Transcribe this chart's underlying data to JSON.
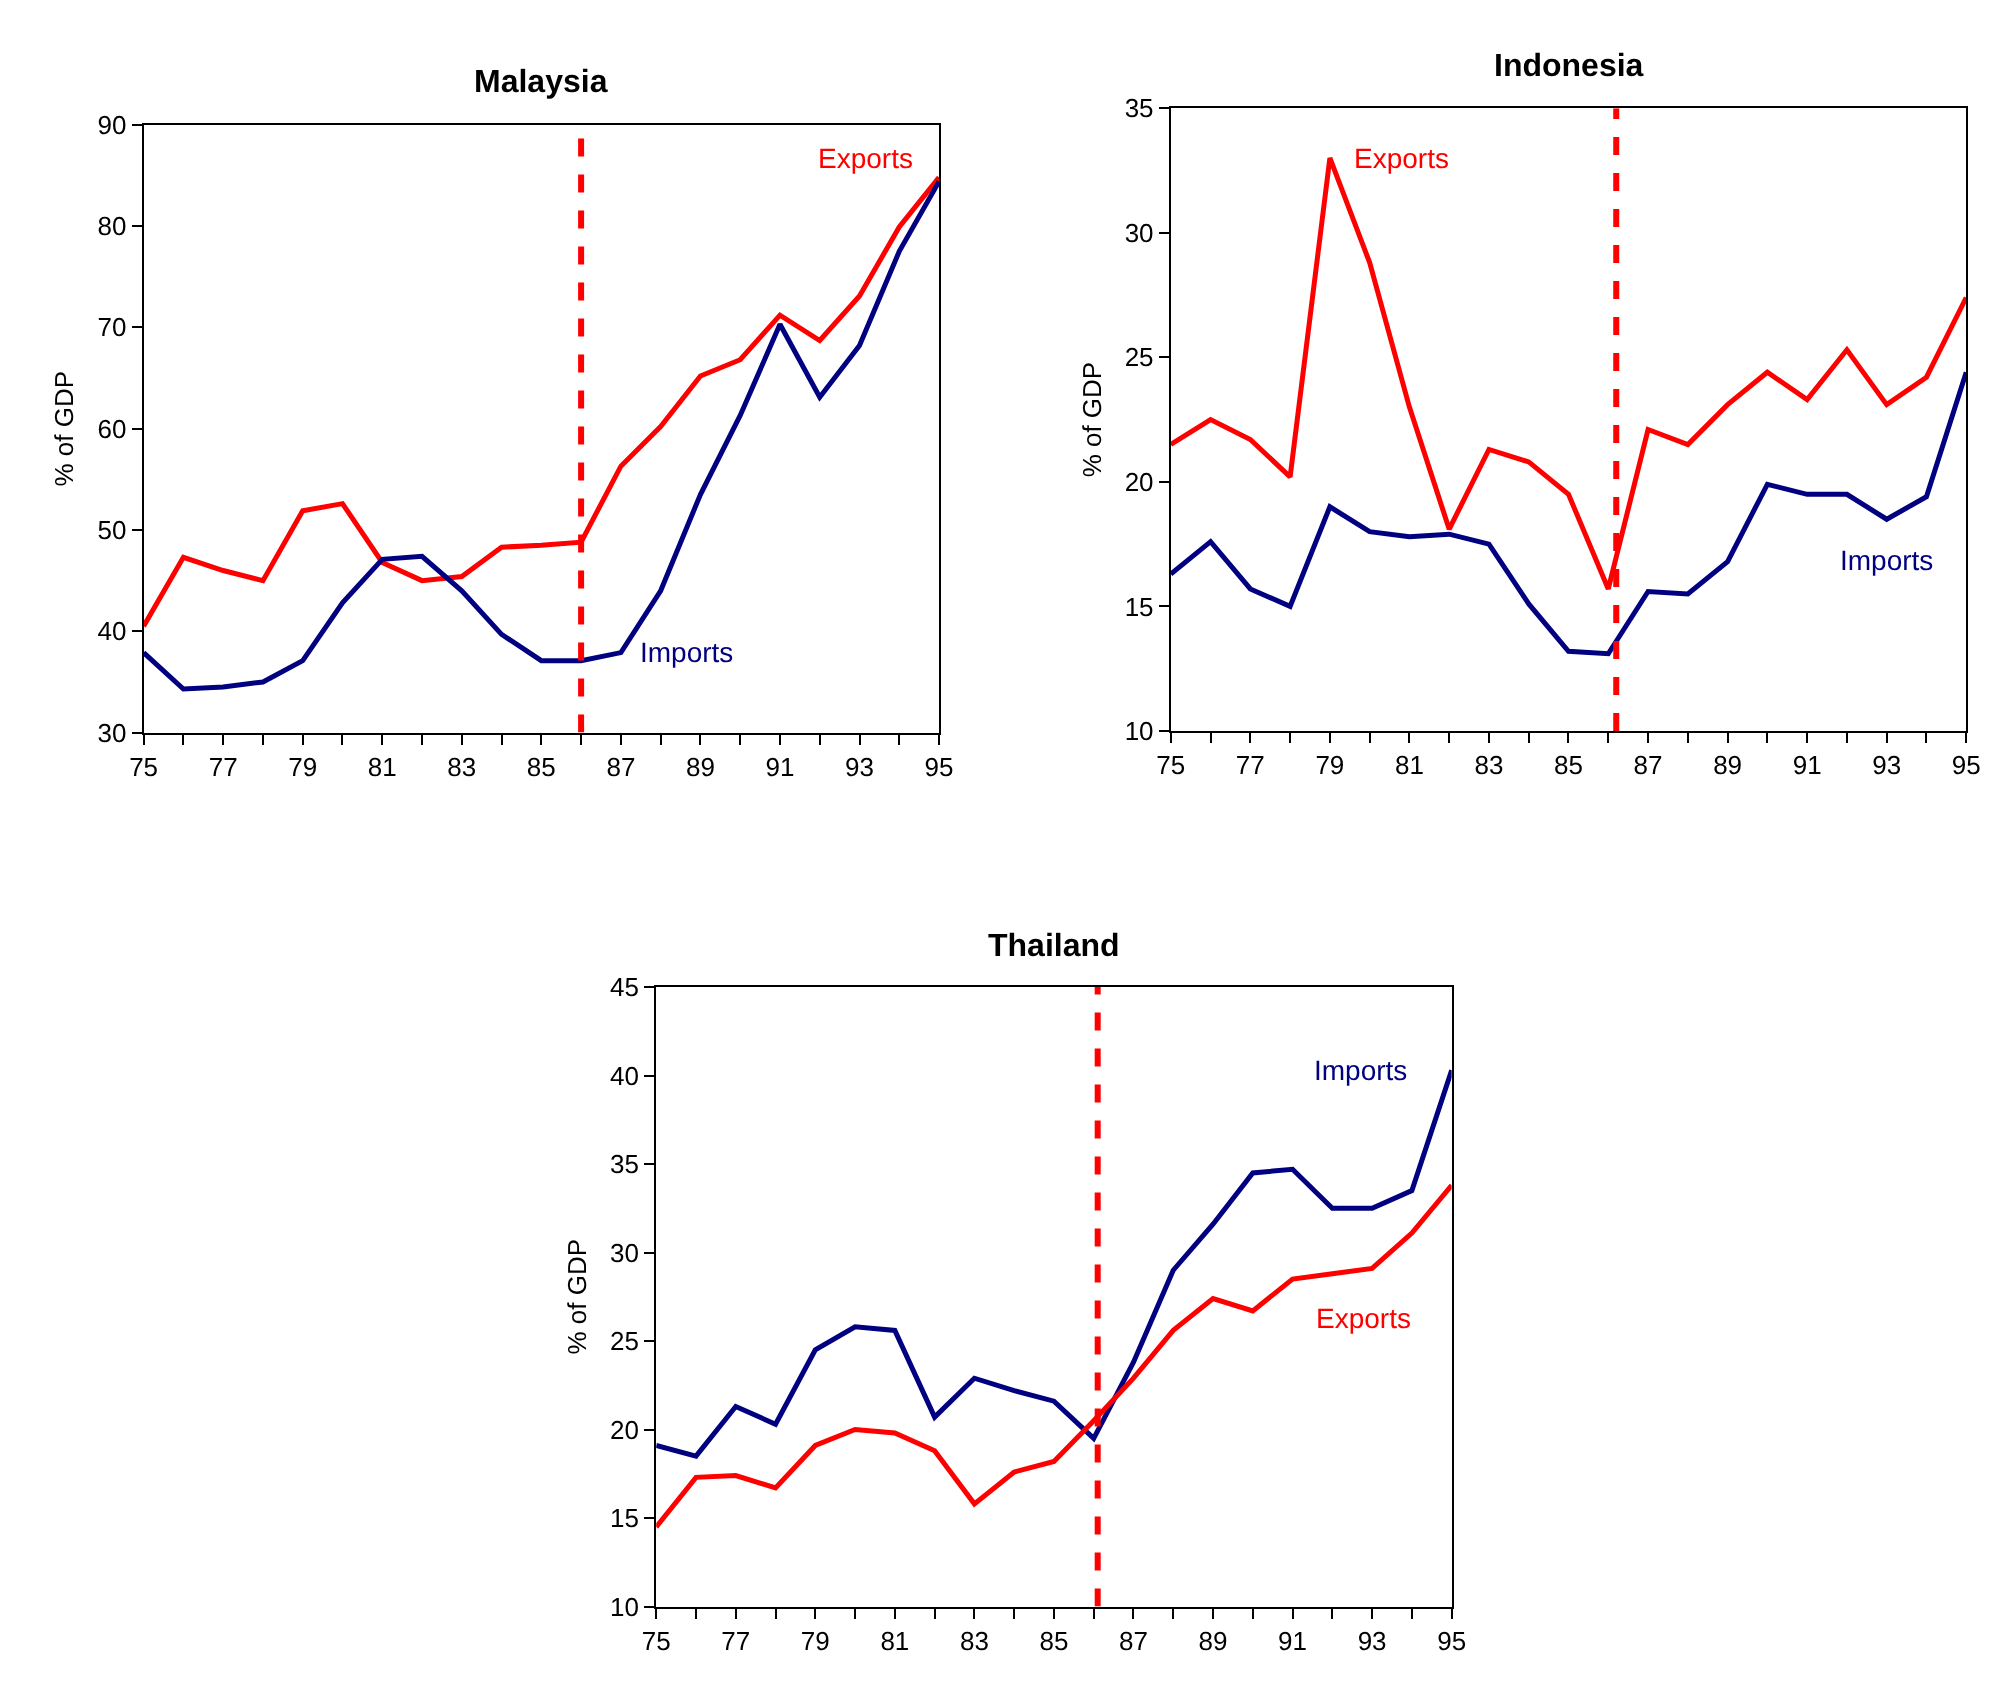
{
  "chart_data": [
    {
      "type": "line",
      "title": "Malaysia",
      "ylabel": "% of GDP",
      "x": [
        75,
        76,
        77,
        78,
        79,
        80,
        81,
        82,
        83,
        84,
        85,
        86,
        87,
        88,
        89,
        90,
        91,
        92,
        93,
        94,
        95
      ],
      "series": [
        {
          "name": "Exports",
          "color": "#ff0000",
          "values": [
            40.5,
            47.3,
            46,
            45,
            51.9,
            52.6,
            46.8,
            45,
            45.4,
            48.3,
            48.5,
            48.8,
            56.3,
            60.2,
            65.2,
            66.8,
            71.2,
            68.7,
            73.1,
            79.9,
            84.8
          ]
        },
        {
          "name": "Imports",
          "color": "#000080",
          "values": [
            37.9,
            34.3,
            34.5,
            35,
            37.1,
            42.8,
            47.1,
            47.4,
            44,
            39.7,
            37.1,
            37.1,
            37.9,
            44,
            53.5,
            61.3,
            70.3,
            63.1,
            68.2,
            77.5,
            84.4
          ]
        }
      ],
      "ref_lines": [
        {
          "axis": "x",
          "value": 86,
          "color": "#ff0000",
          "line_style": "dashed"
        }
      ],
      "xlim": [
        75,
        95
      ],
      "xticks": [
        75,
        {
          "value": 76,
          "label": null
        },
        77,
        {
          "value": 78,
          "label": null
        },
        79,
        {
          "value": 80,
          "label": null
        },
        81,
        {
          "value": 82,
          "label": null
        },
        83,
        {
          "value": 84,
          "label": null
        },
        85,
        {
          "value": 86,
          "label": null
        },
        87,
        {
          "value": 88,
          "label": null
        },
        89,
        {
          "value": 90,
          "label": null
        },
        91,
        {
          "value": 92,
          "label": null
        },
        93,
        {
          "value": 94,
          "label": null
        },
        95
      ],
      "ylim": [
        30,
        90
      ],
      "yticks": [
        30,
        40,
        50,
        60,
        70,
        80,
        90
      ],
      "legend": false,
      "marker": "none",
      "line_style": "solid"
    },
    {
      "type": "line",
      "title": "Indonesia",
      "ylabel": "% of GDP",
      "x": [
        75,
        76,
        77,
        78,
        79,
        80,
        81,
        82,
        83,
        84,
        85,
        86,
        87,
        88,
        89,
        90,
        91,
        92,
        93,
        94,
        95
      ],
      "series": [
        {
          "name": "Exports",
          "color": "#ff0000",
          "values": [
            21.5,
            22.5,
            21.7,
            20.2,
            33,
            28.8,
            23,
            18.1,
            21.3,
            20.8,
            19.5,
            15.7,
            22.1,
            21.5,
            23.1,
            24.4,
            23.3,
            25.3,
            23.1,
            24.2,
            27.4
          ]
        },
        {
          "name": "Imports",
          "color": "#000080",
          "values": [
            16.3,
            17.6,
            15.7,
            15,
            19,
            18,
            17.8,
            17.9,
            17.5,
            15.1,
            13.2,
            13.1,
            15.6,
            15.5,
            16.8,
            19.9,
            19.5,
            19.5,
            18.5,
            19.4,
            24.4
          ]
        }
      ],
      "ref_lines": [
        {
          "axis": "x",
          "value": 86.2,
          "color": "#ff0000",
          "line_style": "dashed"
        }
      ],
      "xlim": [
        75,
        95
      ],
      "xticks": [
        75,
        {
          "value": 76,
          "label": null
        },
        77,
        {
          "value": 78,
          "label": null
        },
        79,
        {
          "value": 80,
          "label": null
        },
        81,
        {
          "value": 82,
          "label": null
        },
        83,
        {
          "value": 84,
          "label": null
        },
        85,
        {
          "value": 86,
          "label": null
        },
        87,
        {
          "value": 88,
          "label": null
        },
        89,
        {
          "value": 90,
          "label": null
        },
        91,
        {
          "value": 92,
          "label": null
        },
        93,
        {
          "value": 94,
          "label": null
        },
        95
      ],
      "ylim": [
        10,
        35
      ],
      "yticks": [
        10,
        15,
        20,
        25,
        30,
        35
      ],
      "legend": false,
      "marker": "none",
      "line_style": "solid"
    },
    {
      "type": "line",
      "title": "Thailand",
      "ylabel": "% of GDP",
      "x": [
        75,
        76,
        77,
        78,
        79,
        80,
        81,
        82,
        83,
        84,
        85,
        86,
        87,
        88,
        89,
        90,
        91,
        92,
        93,
        94,
        95
      ],
      "series": [
        {
          "name": "Imports",
          "color": "#000080",
          "values": [
            19.1,
            18.5,
            21.3,
            20.3,
            24.5,
            25.8,
            25.6,
            20.7,
            22.9,
            22.2,
            21.6,
            19.5,
            23.8,
            29,
            31.6,
            34.5,
            34.7,
            32.5,
            32.5,
            33.5,
            40.3
          ]
        },
        {
          "name": "Exports",
          "color": "#ff0000",
          "values": [
            14.5,
            17.3,
            17.4,
            16.7,
            19.1,
            20,
            19.8,
            18.8,
            15.8,
            17.6,
            18.2,
            20.5,
            22.9,
            25.6,
            27.4,
            26.7,
            28.5,
            28.8,
            29.1,
            31.1,
            33.8
          ]
        }
      ],
      "ref_lines": [
        {
          "axis": "x",
          "value": 86.1,
          "color": "#ff0000",
          "line_style": "dashed"
        }
      ],
      "xlim": [
        75,
        95
      ],
      "xticks": [
        75,
        {
          "value": 76,
          "label": null
        },
        77,
        {
          "value": 78,
          "label": null
        },
        79,
        {
          "value": 80,
          "label": null
        },
        81,
        {
          "value": 82,
          "label": null
        },
        83,
        {
          "value": 84,
          "label": null
        },
        85,
        {
          "value": 86,
          "label": null
        },
        87,
        {
          "value": 88,
          "label": null
        },
        89,
        {
          "value": 90,
          "label": null
        },
        91,
        {
          "value": 92,
          "label": null
        },
        93,
        {
          "value": 94,
          "label": null
        },
        95
      ],
      "ylim": [
        10,
        45
      ],
      "yticks": [
        10,
        15,
        20,
        25,
        30,
        35,
        40,
        45
      ],
      "legend": false,
      "marker": "none",
      "line_style": "solid"
    }
  ]
}
